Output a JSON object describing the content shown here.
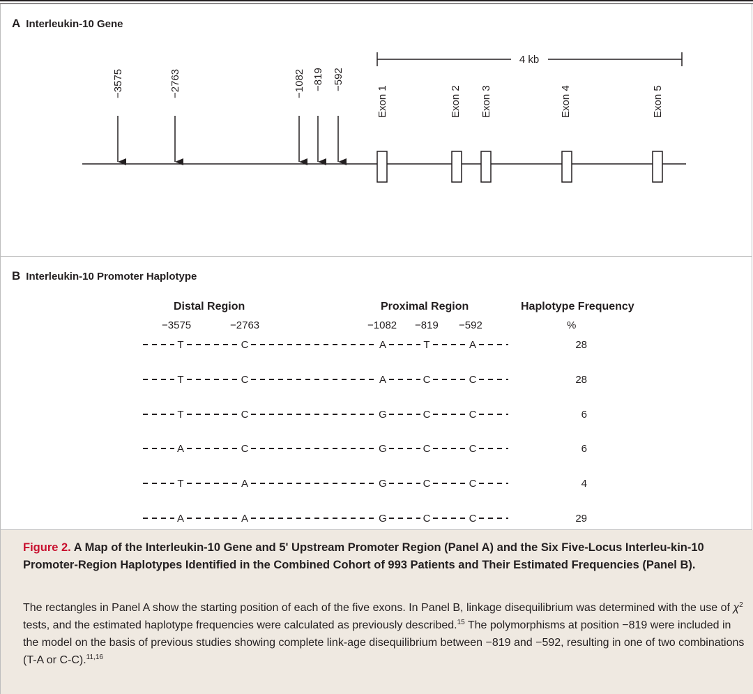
{
  "panel_a": {
    "letter": "A",
    "title": "Interleukin-10 Gene",
    "scale_label": "4 kb",
    "snp_labels": [
      "−3575",
      "−2763",
      "−1082",
      "−819",
      "−592"
    ],
    "exon_labels": [
      "Exon 1",
      "Exon 2",
      "Exon 3",
      "Exon 4",
      "Exon 5"
    ]
  },
  "panel_b": {
    "letter": "B",
    "title": "Interleukin-10 Promoter Haplotype",
    "headers": {
      "distal": "Distal Region",
      "proximal": "Proximal Region",
      "frequency": "Haplotype Frequency"
    },
    "positions": [
      "−3575",
      "−2763",
      "−1082",
      "−819",
      "−592"
    ],
    "percent_label": "%",
    "haplotypes": [
      {
        "alleles": [
          "T",
          "C",
          "A",
          "T",
          "A"
        ],
        "frequency": "28"
      },
      {
        "alleles": [
          "T",
          "C",
          "A",
          "C",
          "C"
        ],
        "frequency": "28"
      },
      {
        "alleles": [
          "T",
          "C",
          "G",
          "C",
          "C"
        ],
        "frequency": "6"
      },
      {
        "alleles": [
          "A",
          "C",
          "G",
          "C",
          "C"
        ],
        "frequency": "6"
      },
      {
        "alleles": [
          "T",
          "A",
          "G",
          "C",
          "C"
        ],
        "frequency": "4"
      },
      {
        "alleles": [
          "A",
          "A",
          "G",
          "C",
          "C"
        ],
        "frequency": "29"
      }
    ]
  },
  "caption": {
    "figure_label": "Figure 2.",
    "title": "A Map of the Interleukin-10 Gene and 5' Upstream Promoter Region (Panel A) and the Six Five-Locus Interleu-kin-10 Promoter-Region Haplotypes Identified in the Combined Cohort of 993 Patients and Their Estimated Frequencies (Panel B).",
    "body_part1": "The rectangles in Panel A show the starting position of each of the five exons. In Panel B, linkage disequilibrium was determined with the use of ",
    "chi_symbol": "χ",
    "chi_sup": "2",
    "body_part2": " tests, and the estimated haplotype frequencies were calculated as previously described.",
    "ref1": "15",
    "body_part3": " The polymorphisms at position −819 were included in the model on the basis of previous studies showing complete link-age disequilibrium between −819 and −592, resulting in one of two combinations (T-A or C-C).",
    "ref2": "11,16"
  },
  "colors": {
    "ink": "#231f20",
    "figure_label": "#c8102e",
    "caption_background": "#efe9e1",
    "panel_border": "#bdbdbd"
  }
}
